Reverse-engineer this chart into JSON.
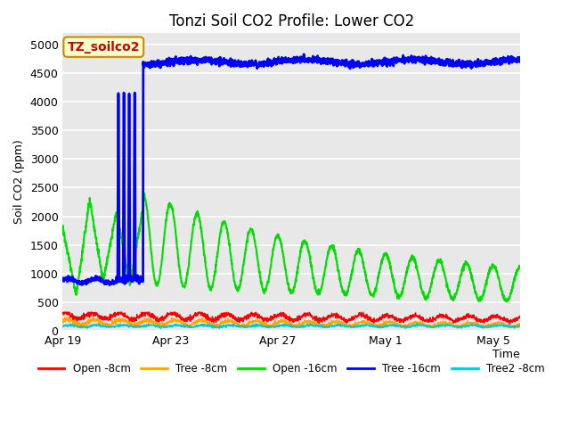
{
  "title": "Tonzi Soil CO2 Profile: Lower CO2",
  "xlabel": "Time",
  "ylabel": "Soil CO2 (ppm)",
  "ylim": [
    0,
    5200
  ],
  "fig_bg": "#ffffff",
  "plot_bg": "#e8e8e8",
  "legend_label": "TZ_soilco2",
  "series": {
    "open_8cm": {
      "label": "Open -8cm",
      "color": "#ff0000"
    },
    "tree_8cm": {
      "label": "Tree -8cm",
      "color": "#ffa500"
    },
    "open_16cm": {
      "label": "Open -16cm",
      "color": "#00dd00"
    },
    "tree_16cm": {
      "label": "Tree -16cm",
      "color": "#0000ff"
    },
    "tree2_8cm": {
      "label": "Tree2 -8cm",
      "color": "#00cccc"
    }
  },
  "xtick_positions": [
    0,
    96,
    192,
    288,
    384
  ],
  "xtick_labels": [
    "Apr 19",
    "Apr 23",
    "Apr 27",
    "May 1",
    "May 5"
  ],
  "yticks": [
    0,
    500,
    1000,
    1500,
    2000,
    2500,
    3000,
    3500,
    4000,
    4500,
    5000
  ],
  "total_hours": 408,
  "n_points": 2000
}
